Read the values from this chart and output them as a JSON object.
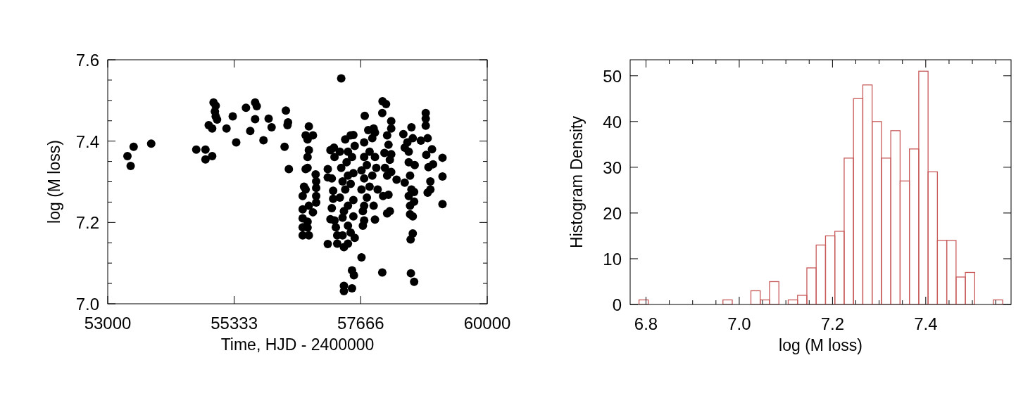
{
  "chart_data": [
    {
      "type": "scatter",
      "xlabel": "Time, HJD - 2400000",
      "ylabel": "log (M loss)",
      "marker": "circle",
      "color": "#000000",
      "xlim": [
        53000,
        60000
      ],
      "xticks": [
        53000,
        55333,
        57666,
        60000
      ],
      "ylim": [
        7.0,
        7.6
      ],
      "yticks": [
        "7.0",
        {
          "value": 7.05,
          "label": null
        },
        7.2,
        {
          "value": 7.1,
          "label": null
        },
        {
          "value": 7.15,
          "label": null
        },
        {
          "value": 7.25,
          "label": null
        },
        {
          "value": 7.3,
          "label": null
        },
        {
          "value": 7.35,
          "label": null
        },
        7.4,
        {
          "value": 7.45,
          "label": null
        },
        {
          "value": 7.5,
          "label": null
        },
        {
          "value": 7.55,
          "label": null
        },
        7.6
      ],
      "x": [
        53364,
        53423,
        53478,
        53802,
        54633,
        54803,
        54803,
        54927,
        54863,
        54927,
        54952,
        54992,
        54977,
        55017,
        54992,
        55191,
        55306,
        55370,
        55550,
        55629,
        55719,
        55749,
        55719,
        55873,
        55968,
        56023,
        56262,
        56286,
        56326,
        56316,
        56341,
        56596,
        56710,
        56596,
        56686,
        56596,
        56686,
        56596,
        56710,
        56785,
        56596,
        56651,
        56621,
        56651,
        56686,
        56686,
        56710,
        56651,
        56686,
        56785,
        56710,
        56835,
        56845,
        56845,
        56845,
        56845,
        57059,
        57059,
        57059,
        57133,
        57173,
        57108,
        57183,
        57158,
        57158,
        57133,
        57108,
        57183,
        57208,
        57233,
        57233,
        57307,
        57357,
        57357,
        57506,
        57506,
        57541,
        57357,
        57431,
        57556,
        57481,
        57332,
        57332,
        57431,
        57357,
        57531,
        57431,
        57531,
        57282,
        57381,
        57481,
        57332,
        57431,
        57531,
        57307,
        57406,
        57506,
        57282,
        57431,
        57556,
        57381,
        57481,
        57531,
        57681,
        57706,
        57730,
        57706,
        57730,
        57780,
        57681,
        57830,
        57730,
        57880,
        57681,
        57780,
        57730,
        57830,
        57929,
        57730,
        57880,
        57805,
        57905,
        57741,
        57929,
        57905,
        57979,
        57954,
        57929,
        58064,
        58069,
        58134,
        58064,
        58114,
        58079,
        58154,
        58204,
        58179,
        58229,
        58154,
        58104,
        58229,
        58179,
        58154,
        58229,
        58229,
        58328,
        58204,
        58453,
        58478,
        58527,
        58602,
        58627,
        58552,
        58478,
        58577,
        58602,
        58552,
        58652,
        58577,
        58652,
        58577,
        58627,
        58627,
        58587,
        58592,
        58652,
        58552,
        58662,
        58776,
        58866,
        58866,
        58866,
        58901,
        58876,
        58981,
        59001,
        58916,
        58951,
        58951,
        58901,
        59175,
        59175,
        59175
      ],
      "values": [
        7.363,
        7.339,
        7.386,
        7.394,
        7.379,
        7.379,
        7.355,
        7.363,
        7.439,
        7.431,
        7.495,
        7.487,
        7.473,
        7.453,
        7.461,
        7.431,
        7.461,
        7.397,
        7.482,
        7.425,
        7.495,
        7.486,
        7.454,
        7.402,
        7.455,
        7.434,
        7.386,
        7.475,
        7.446,
        7.439,
        7.331,
        7.168,
        7.168,
        7.188,
        7.187,
        7.21,
        7.202,
        7.232,
        7.241,
        7.225,
        7.265,
        7.281,
        7.288,
        7.331,
        7.334,
        7.361,
        7.378,
        7.414,
        7.404,
        7.414,
        7.436,
        7.318,
        7.301,
        7.285,
        7.265,
        7.249,
        7.147,
        7.331,
        7.311,
        7.308,
        7.384,
        7.378,
        7.361,
        7.278,
        7.258,
        7.235,
        7.208,
        7.205,
        7.188,
        7.168,
        7.148,
        7.554,
        7.044,
        7.031,
        7.038,
        7.082,
        7.07,
        7.139,
        7.148,
        7.162,
        7.175,
        7.168,
        7.212,
        7.192,
        7.228,
        7.215,
        7.241,
        7.255,
        7.261,
        7.281,
        7.295,
        7.301,
        7.315,
        7.321,
        7.334,
        7.348,
        7.361,
        7.374,
        7.374,
        7.388,
        7.404,
        7.414,
        7.415,
        7.114,
        7.192,
        7.205,
        7.228,
        7.241,
        7.261,
        7.281,
        7.288,
        7.308,
        7.315,
        7.328,
        7.341,
        7.361,
        7.374,
        7.361,
        7.397,
        7.407,
        7.427,
        7.431,
        7.462,
        7.207,
        7.241,
        7.281,
        7.334,
        7.421,
        7.077,
        7.498,
        7.491,
        7.469,
        7.334,
        7.265,
        7.222,
        7.228,
        7.268,
        7.324,
        7.315,
        7.371,
        7.368,
        7.391,
        7.414,
        7.431,
        7.449,
        7.305,
        7.354,
        7.417,
        7.384,
        7.397,
        7.434,
        7.407,
        7.374,
        7.298,
        7.315,
        7.281,
        7.265,
        7.275,
        7.241,
        7.251,
        7.22,
        7.215,
        7.173,
        7.158,
        7.075,
        7.054,
        7.348,
        7.341,
        7.401,
        7.469,
        7.455,
        7.438,
        7.407,
        7.366,
        7.38,
        7.343,
        7.336,
        7.301,
        7.281,
        7.273,
        7.359,
        7.313,
        7.245
      ]
    },
    {
      "type": "histogram",
      "xlabel": "log (M loss)",
      "ylabel": "Histogram Density",
      "color": "#c85a5a",
      "xlim": [
        6.766,
        7.583
      ],
      "xticks": [
        6.8,
        {
          "value": 6.85,
          "label": null
        },
        {
          "value": 6.9,
          "label": null
        },
        {
          "value": 6.95,
          "label": null
        },
        "7.0",
        {
          "value": 7.05,
          "label": null
        },
        {
          "value": 7.1,
          "label": null
        },
        {
          "value": 7.15,
          "label": null
        },
        7.2,
        {
          "value": 7.25,
          "label": null
        },
        {
          "value": 7.3,
          "label": null
        },
        {
          "value": 7.35,
          "label": null
        },
        7.4,
        {
          "value": 7.45,
          "label": null
        },
        {
          "value": 7.5,
          "label": null
        },
        {
          "value": 7.55,
          "label": null
        }
      ],
      "ylim": [
        0,
        53.5
      ],
      "yticks": [
        0,
        10,
        20,
        30,
        40,
        50
      ],
      "bins": [
        6.785,
        6.805,
        6.825,
        6.845,
        6.865,
        6.885,
        6.905,
        6.925,
        6.945,
        6.965,
        6.985,
        7.005,
        7.025,
        7.045,
        7.065,
        7.085,
        7.105,
        7.125,
        7.145,
        7.165,
        7.185,
        7.205,
        7.225,
        7.245,
        7.265,
        7.285,
        7.305,
        7.325,
        7.345,
        7.365,
        7.385,
        7.405,
        7.425,
        7.445,
        7.465,
        7.485,
        7.505,
        7.525,
        7.545,
        7.565
      ],
      "values": [
        1,
        0,
        0,
        0,
        0,
        0,
        0,
        0,
        0,
        1,
        0,
        0,
        3,
        1,
        5,
        0,
        1,
        2,
        8,
        13,
        15,
        16,
        32,
        45,
        48,
        40,
        32,
        38,
        27,
        34,
        51,
        29,
        14,
        14,
        6,
        7,
        0,
        0,
        1
      ]
    }
  ]
}
